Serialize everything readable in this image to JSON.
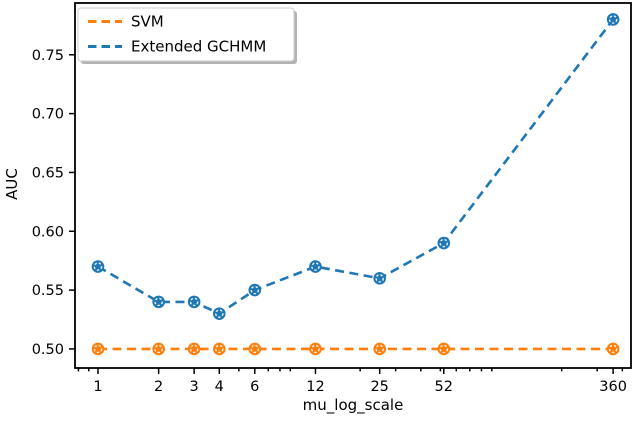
{
  "figure": {
    "background": "#ffffff",
    "spine_color": "#000000",
    "text_color": "#000000"
  },
  "chart_data": {
    "type": "line",
    "title": "",
    "xlabel": "mu_log_scale",
    "ylabel": "AUC",
    "x_scale": "log",
    "grid": false,
    "categories": [
      1,
      2,
      3,
      4,
      6,
      12,
      25,
      52,
      360
    ],
    "series": [
      {
        "name": "SVM",
        "color": "#ff7f0e",
        "linestyle": "dashed",
        "marker": "circle",
        "values": [
          0.5,
          0.5,
          0.5,
          0.5,
          0.5,
          0.5,
          0.5,
          0.5,
          0.5
        ]
      },
      {
        "name": "Extended GCHMM",
        "color": "#1f77b4",
        "linestyle": "dashed",
        "marker": "circle",
        "values": [
          0.57,
          0.54,
          0.54,
          0.53,
          0.55,
          0.57,
          0.56,
          0.59,
          0.78
        ]
      }
    ],
    "y_tick_labels": [
      "0.50",
      "0.55",
      "0.60",
      "0.65",
      "0.70",
      "0.75"
    ],
    "x_minor_ticks": [
      0.8,
      0.9,
      5,
      7,
      8,
      9,
      20,
      30,
      40,
      50,
      60,
      70,
      80,
      90,
      200,
      300,
      400
    ],
    "ylim": [
      0.4838,
      0.794
    ],
    "xlim_log10": [
      -0.114,
      2.645
    ],
    "legend": {
      "position": "upper left",
      "shadow": true,
      "entries": [
        "SVM",
        "Extended GCHMM"
      ]
    }
  }
}
